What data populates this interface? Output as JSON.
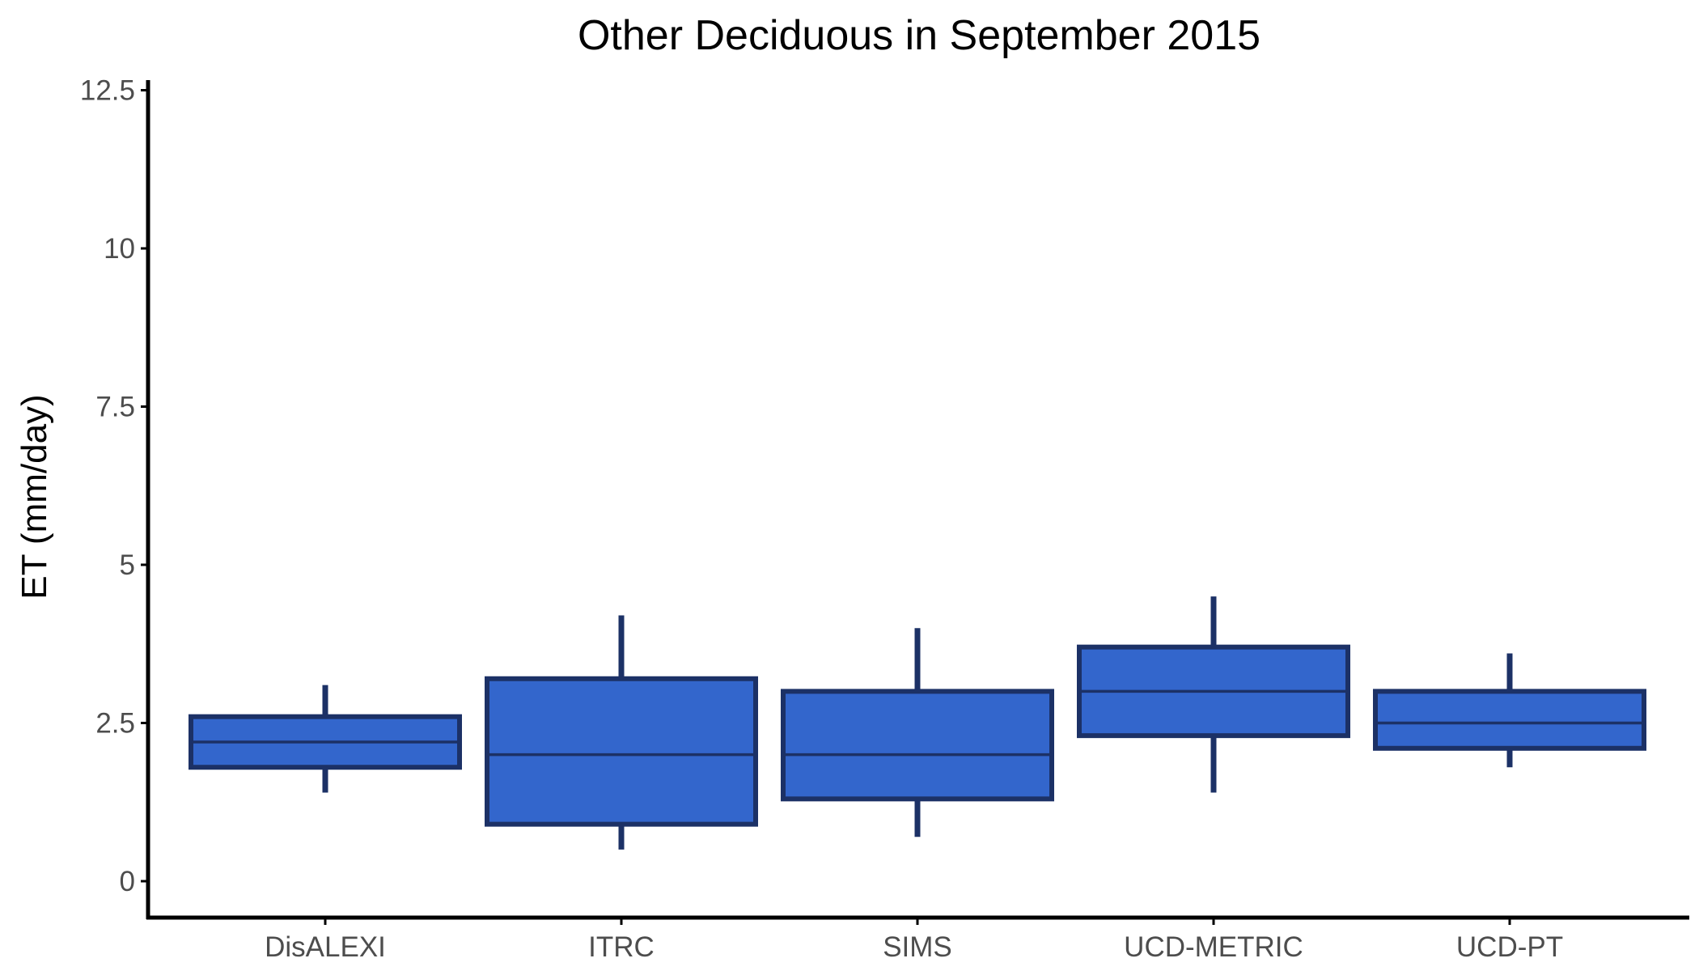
{
  "chart_data": {
    "type": "box",
    "title": "Other Deciduous in September 2015",
    "xlabel": "",
    "ylabel": "ET (mm/day)",
    "ylim": [
      -0.55,
      12.65
    ],
    "yticks": [
      0,
      2.5,
      5,
      7.5,
      10,
      12.5
    ],
    "ytick_labels": [
      "0",
      "2.5",
      "5",
      "7.5",
      "10",
      "12.5"
    ],
    "grid": false,
    "legend": "none",
    "colors": {
      "box_fill": "#3366cc",
      "box_stroke": "#1c3166",
      "axis": "#000000",
      "tick_text": "#4d4d4d"
    },
    "categories": [
      "DisALEXI",
      "ITRC",
      "SIMS",
      "UCD-METRIC",
      "UCD-PT"
    ],
    "boxes": [
      {
        "category": "DisALEXI",
        "whisker_low": 1.4,
        "q1": 1.8,
        "median": 2.2,
        "q3": 2.6,
        "whisker_high": 3.1
      },
      {
        "category": "ITRC",
        "whisker_low": 0.5,
        "q1": 0.9,
        "median": 2.0,
        "q3": 3.2,
        "whisker_high": 4.2
      },
      {
        "category": "SIMS",
        "whisker_low": 0.7,
        "q1": 1.3,
        "median": 2.0,
        "q3": 3.0,
        "whisker_high": 4.0
      },
      {
        "category": "UCD-METRIC",
        "whisker_low": 1.4,
        "q1": 2.3,
        "median": 3.0,
        "q3": 3.7,
        "whisker_high": 4.5
      },
      {
        "category": "UCD-PT",
        "whisker_low": 1.8,
        "q1": 2.1,
        "median": 2.5,
        "q3": 3.0,
        "whisker_high": 3.6
      }
    ]
  }
}
